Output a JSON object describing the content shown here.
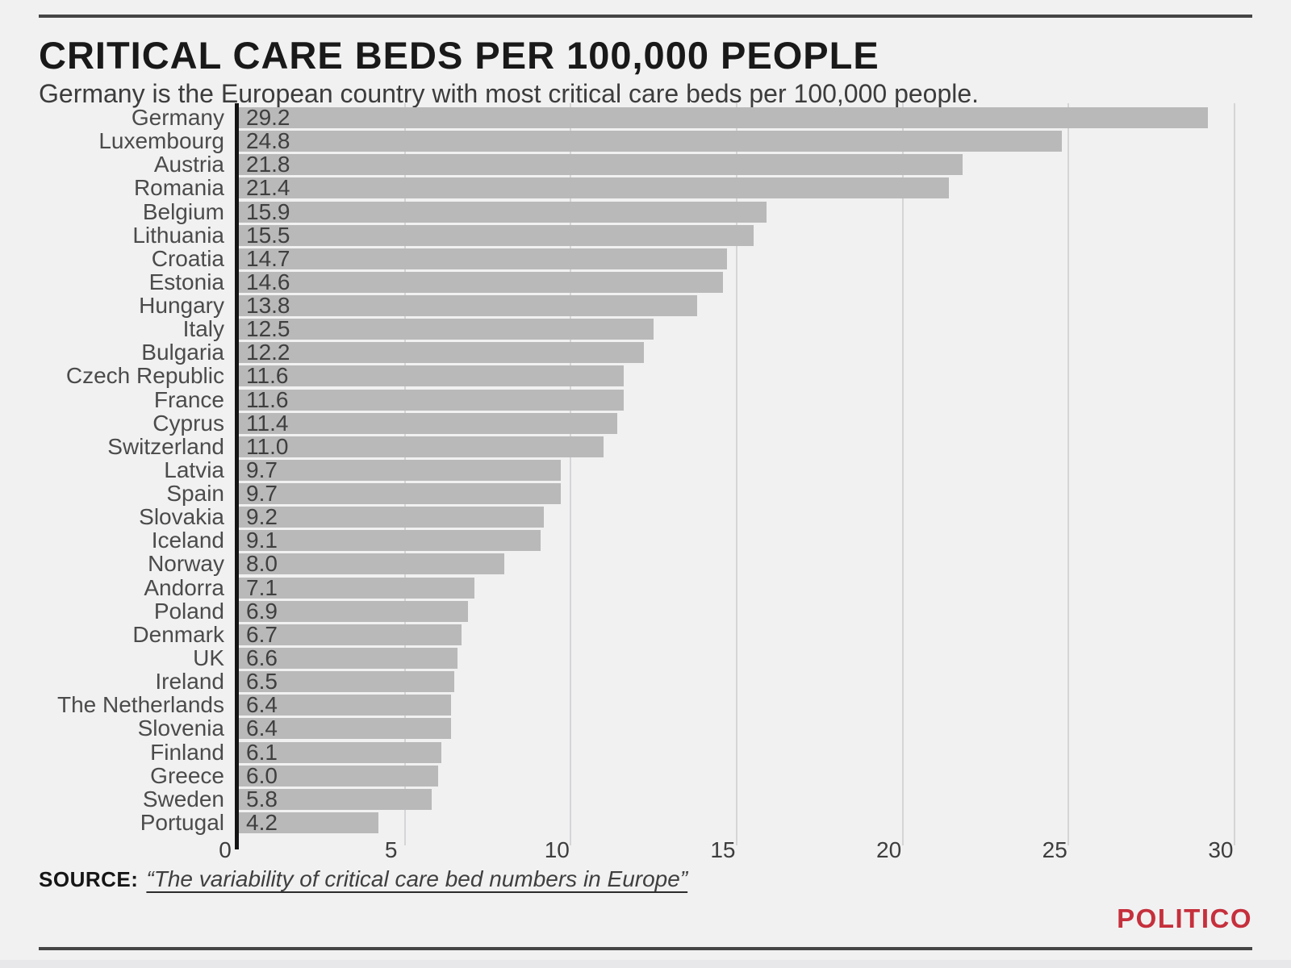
{
  "header": {
    "title": "CRITICAL CARE BEDS PER 100,000 PEOPLE",
    "subtitle": "Germany is the European country with most critical care beds per 100,000 people."
  },
  "chart_data": {
    "type": "bar",
    "orientation": "horizontal",
    "title": "CRITICAL CARE BEDS PER 100,000 PEOPLE",
    "subtitle": "Germany is the European country with most critical care beds per 100,000 people.",
    "categories": [
      "Germany",
      "Luxembourg",
      "Austria",
      "Romania",
      "Belgium",
      "Lithuania",
      "Croatia",
      "Estonia",
      "Hungary",
      "Italy",
      "Bulgaria",
      "Czech Republic",
      "France",
      "Cyprus",
      "Switzerland",
      "Latvia",
      "Spain",
      "Slovakia",
      "Iceland",
      "Norway",
      "Andorra",
      "Poland",
      "Denmark",
      "UK",
      "Ireland",
      "The Netherlands",
      "Slovenia",
      "Finland",
      "Greece",
      "Sweden",
      "Portugal"
    ],
    "values": [
      29.2,
      24.8,
      21.8,
      21.4,
      15.9,
      15.5,
      14.7,
      14.6,
      13.8,
      12.5,
      12.2,
      11.6,
      11.6,
      11.4,
      11.0,
      9.7,
      9.7,
      9.2,
      9.1,
      8.0,
      7.1,
      6.9,
      6.7,
      6.6,
      6.5,
      6.4,
      6.4,
      6.1,
      6.0,
      5.8,
      4.2
    ],
    "xlabel": "",
    "ylabel": "",
    "xlim": [
      0,
      30
    ],
    "xticks": [
      0,
      5,
      10,
      15,
      20,
      25,
      30
    ],
    "grid": true,
    "value_label_position": "inside-left",
    "bar_color": "#b9b9ba",
    "gridline_color": "#d5d5d7",
    "axis_color": "#141414"
  },
  "footer": {
    "source_label": "SOURCE:",
    "source_text": "“The variability of critical care bed numbers in Europe”",
    "brand": "POLITICO",
    "brand_color": "#c5303c"
  }
}
